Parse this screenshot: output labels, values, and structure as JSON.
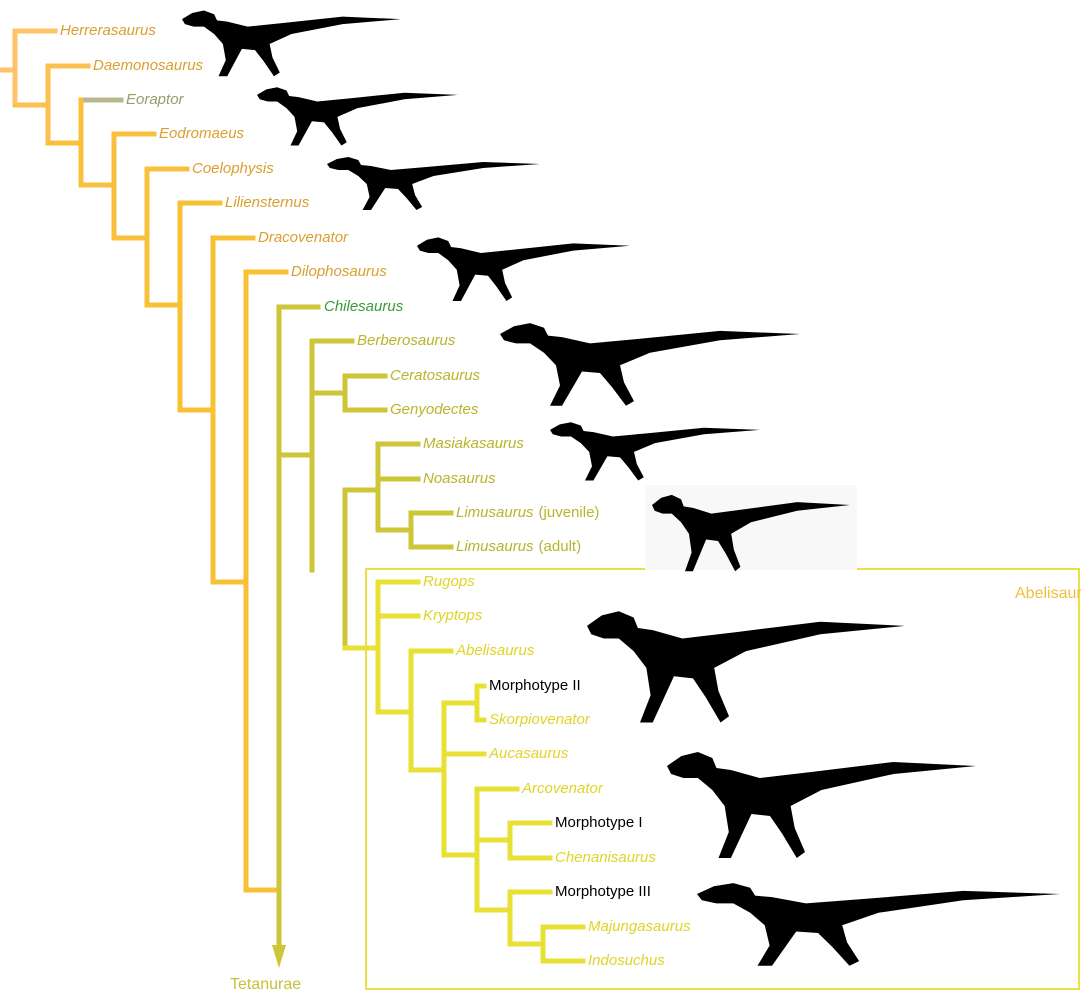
{
  "leaves": [
    {
      "name": "Herrerasaurus"
    },
    {
      "name": "Daemonosaurus"
    },
    {
      "name": "Eoraptor"
    },
    {
      "name": "Eodromaeus"
    },
    {
      "name": "Coelophysis"
    },
    {
      "name": "Liliensternus"
    },
    {
      "name": "Dracovenator"
    },
    {
      "name": "Dilophosaurus"
    },
    {
      "name": "Chilesaurus"
    },
    {
      "name": "Berberosaurus"
    },
    {
      "name": "Ceratosaurus"
    },
    {
      "name": "Genyodectes"
    },
    {
      "name": "Masiakasaurus"
    },
    {
      "name": "Noasaurus"
    },
    {
      "name": "Limusaurus",
      "qualifier": "(juvenile)"
    },
    {
      "name": "Limusaurus",
      "qualifier": "(adult)"
    },
    {
      "name": "Rugops"
    },
    {
      "name": "Kryptops"
    },
    {
      "name": "Abelisaurus"
    },
    {
      "name": "Morphotype II"
    },
    {
      "name": "Skorpiovenator"
    },
    {
      "name": "Aucasaurus"
    },
    {
      "name": "Arcovenator"
    },
    {
      "name": "Morphotype I"
    },
    {
      "name": "Chenanisaurus"
    },
    {
      "name": "Morphotype III"
    },
    {
      "name": "Majungasaurus"
    },
    {
      "name": "Indosuchus"
    }
  ],
  "outgroup_label": "Tetanurae",
  "clade_label": "Abelisauridae"
}
